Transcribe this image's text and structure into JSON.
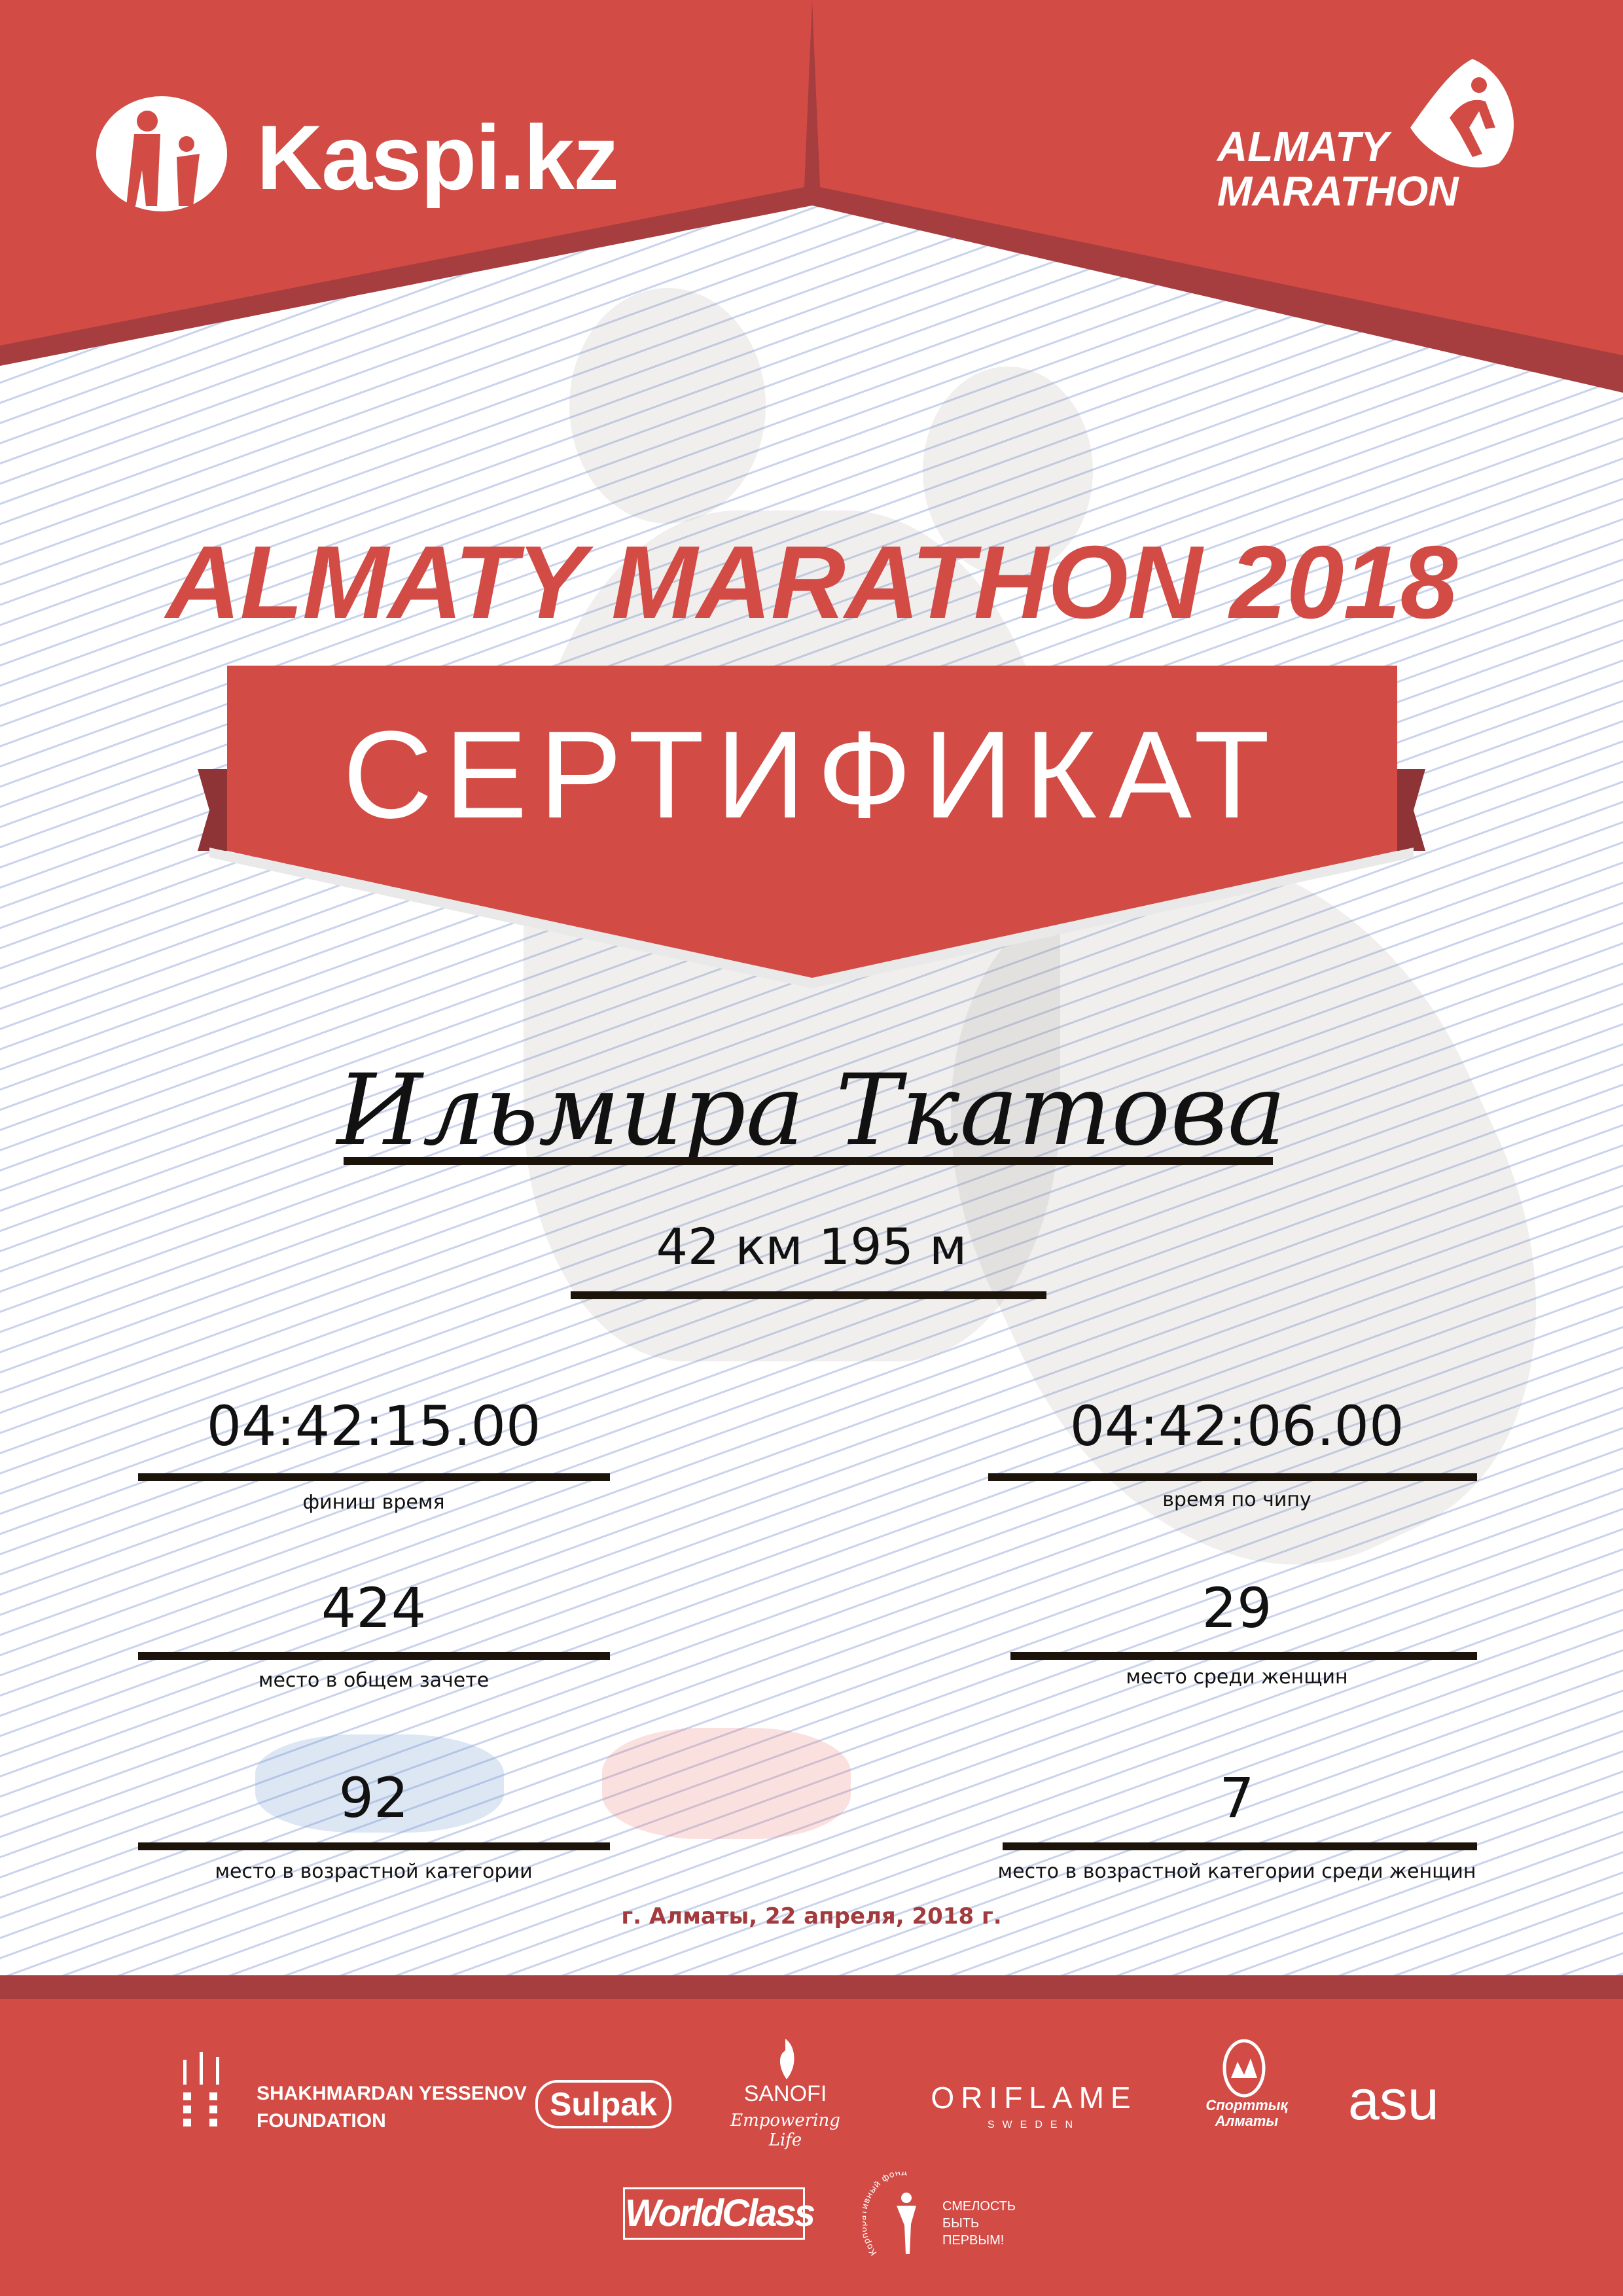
{
  "colors": {
    "brand_red": "#d24b45",
    "dark_red": "#a63d3f",
    "date_red": "#a33a3d",
    "line": "#1c140a"
  },
  "header": {
    "left_logo": {
      "text": "Kaspi.kz",
      "icon": "kaspi-figure-icon"
    },
    "right_logo": {
      "line1": "ALMATY",
      "line2": "MARATHON",
      "icon": "runner-icon"
    }
  },
  "title": "ALMATY MARATHON 2018",
  "banner": "СЕРТИФИКАТ",
  "participant": {
    "name": "Ильмира Ткатова",
    "distance": "42 км 195 м"
  },
  "results": {
    "finish_time": {
      "value": "04:42:15.00",
      "label": "финиш время"
    },
    "chip_time": {
      "value": "04:42:06.00",
      "label": "время по чипу"
    },
    "overall_place": {
      "value": "424",
      "label": "место в общем зачете"
    },
    "women_place": {
      "value": "29",
      "label": "место среди женщин"
    },
    "age_place": {
      "value": "92",
      "label": "место в возрастной категории"
    },
    "age_women_place": {
      "value": "7",
      "label": "место в возрастной категории среди женщин"
    }
  },
  "date": "г. Алматы, 22 апреля, 2018 г.",
  "sponsors": {
    "yessenov": {
      "line1": "SHAKHMARDAN YESSENOV",
      "line2": "FOUNDATION"
    },
    "sulpak": "Sulpak",
    "sanofi": {
      "name": "SANOFI",
      "tagline": "Empowering Life"
    },
    "oriflame": {
      "name": "ORIFLAME",
      "sub": "SWEDEN"
    },
    "sport_almaty": {
      "line1": "Спорттық",
      "line2": "Алматы"
    },
    "asu": "asu",
    "worldclass": "WorldClass",
    "fund": {
      "arc": "Корпоративный фонд",
      "line1": "СМЕЛОСТЬ",
      "line2": "БЫТЬ",
      "line3": "ПЕРВЫМ!"
    }
  }
}
